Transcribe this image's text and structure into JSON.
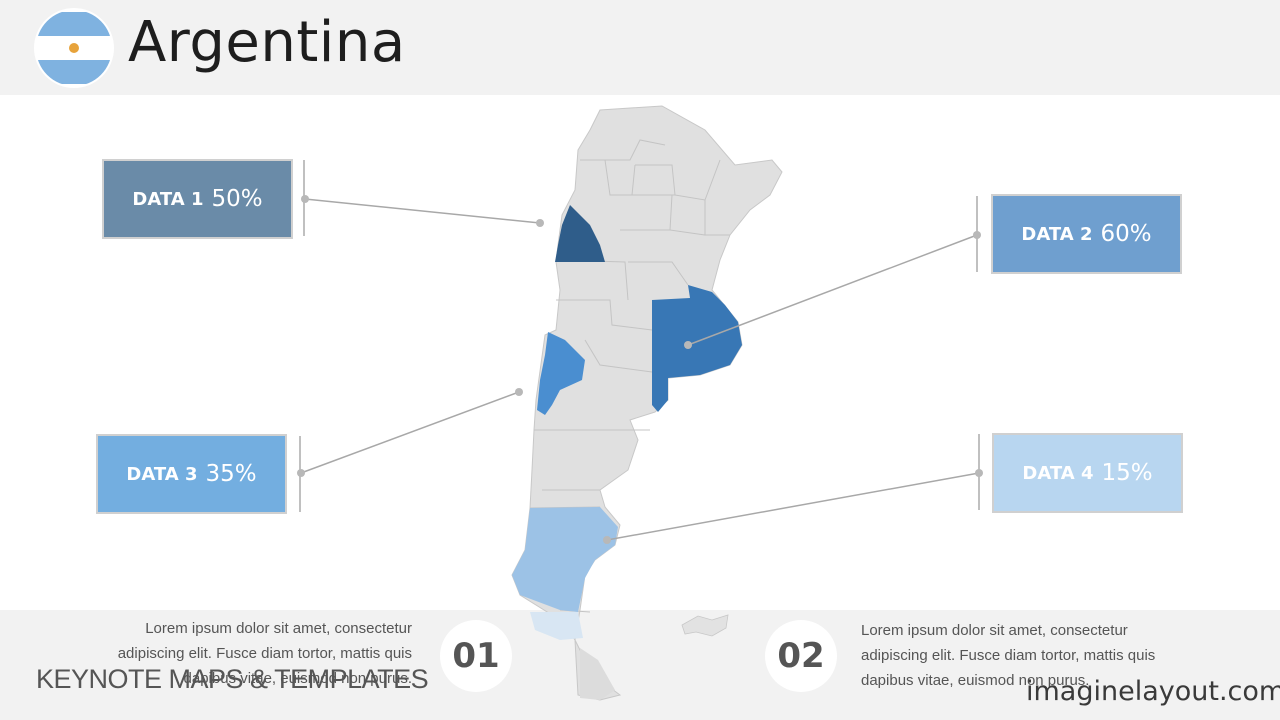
{
  "title": "Argentina",
  "colors": {
    "data1": "#6a8ba8",
    "data2": "#6f9fcf",
    "data3": "#73aee0",
    "data4": "#b8d6f0",
    "highlight1": "#2f5d8a",
    "highlight2": "#3877b5",
    "highlight3": "#4a8ed0",
    "highlight4": "#9cc2e6",
    "map_base": "#e0e0e0",
    "connector": "#a8a8a8"
  },
  "data_items": [
    {
      "label": "DATA 1",
      "value": "50%"
    },
    {
      "label": "DATA 2",
      "value": "60%"
    },
    {
      "label": "DATA 3",
      "value": "35%"
    },
    {
      "label": "DATA 4",
      "value": "15%"
    }
  ],
  "sections": [
    {
      "number": "01",
      "text": "Lorem ipsum dolor sit amet, consectetur adipiscing elit. Fusce diam tortor, mattis quis dapibus vitae, euismod non purus."
    },
    {
      "number": "02",
      "text": "Lorem ipsum dolor sit amet, consectetur adipiscing elit. Fusce diam tortor, mattis quis dapibus vitae, euismod non purus."
    }
  ],
  "footer": {
    "left": "KEYNOTE MAPS & TEMPLATES",
    "right": "imaginelayout.com"
  }
}
